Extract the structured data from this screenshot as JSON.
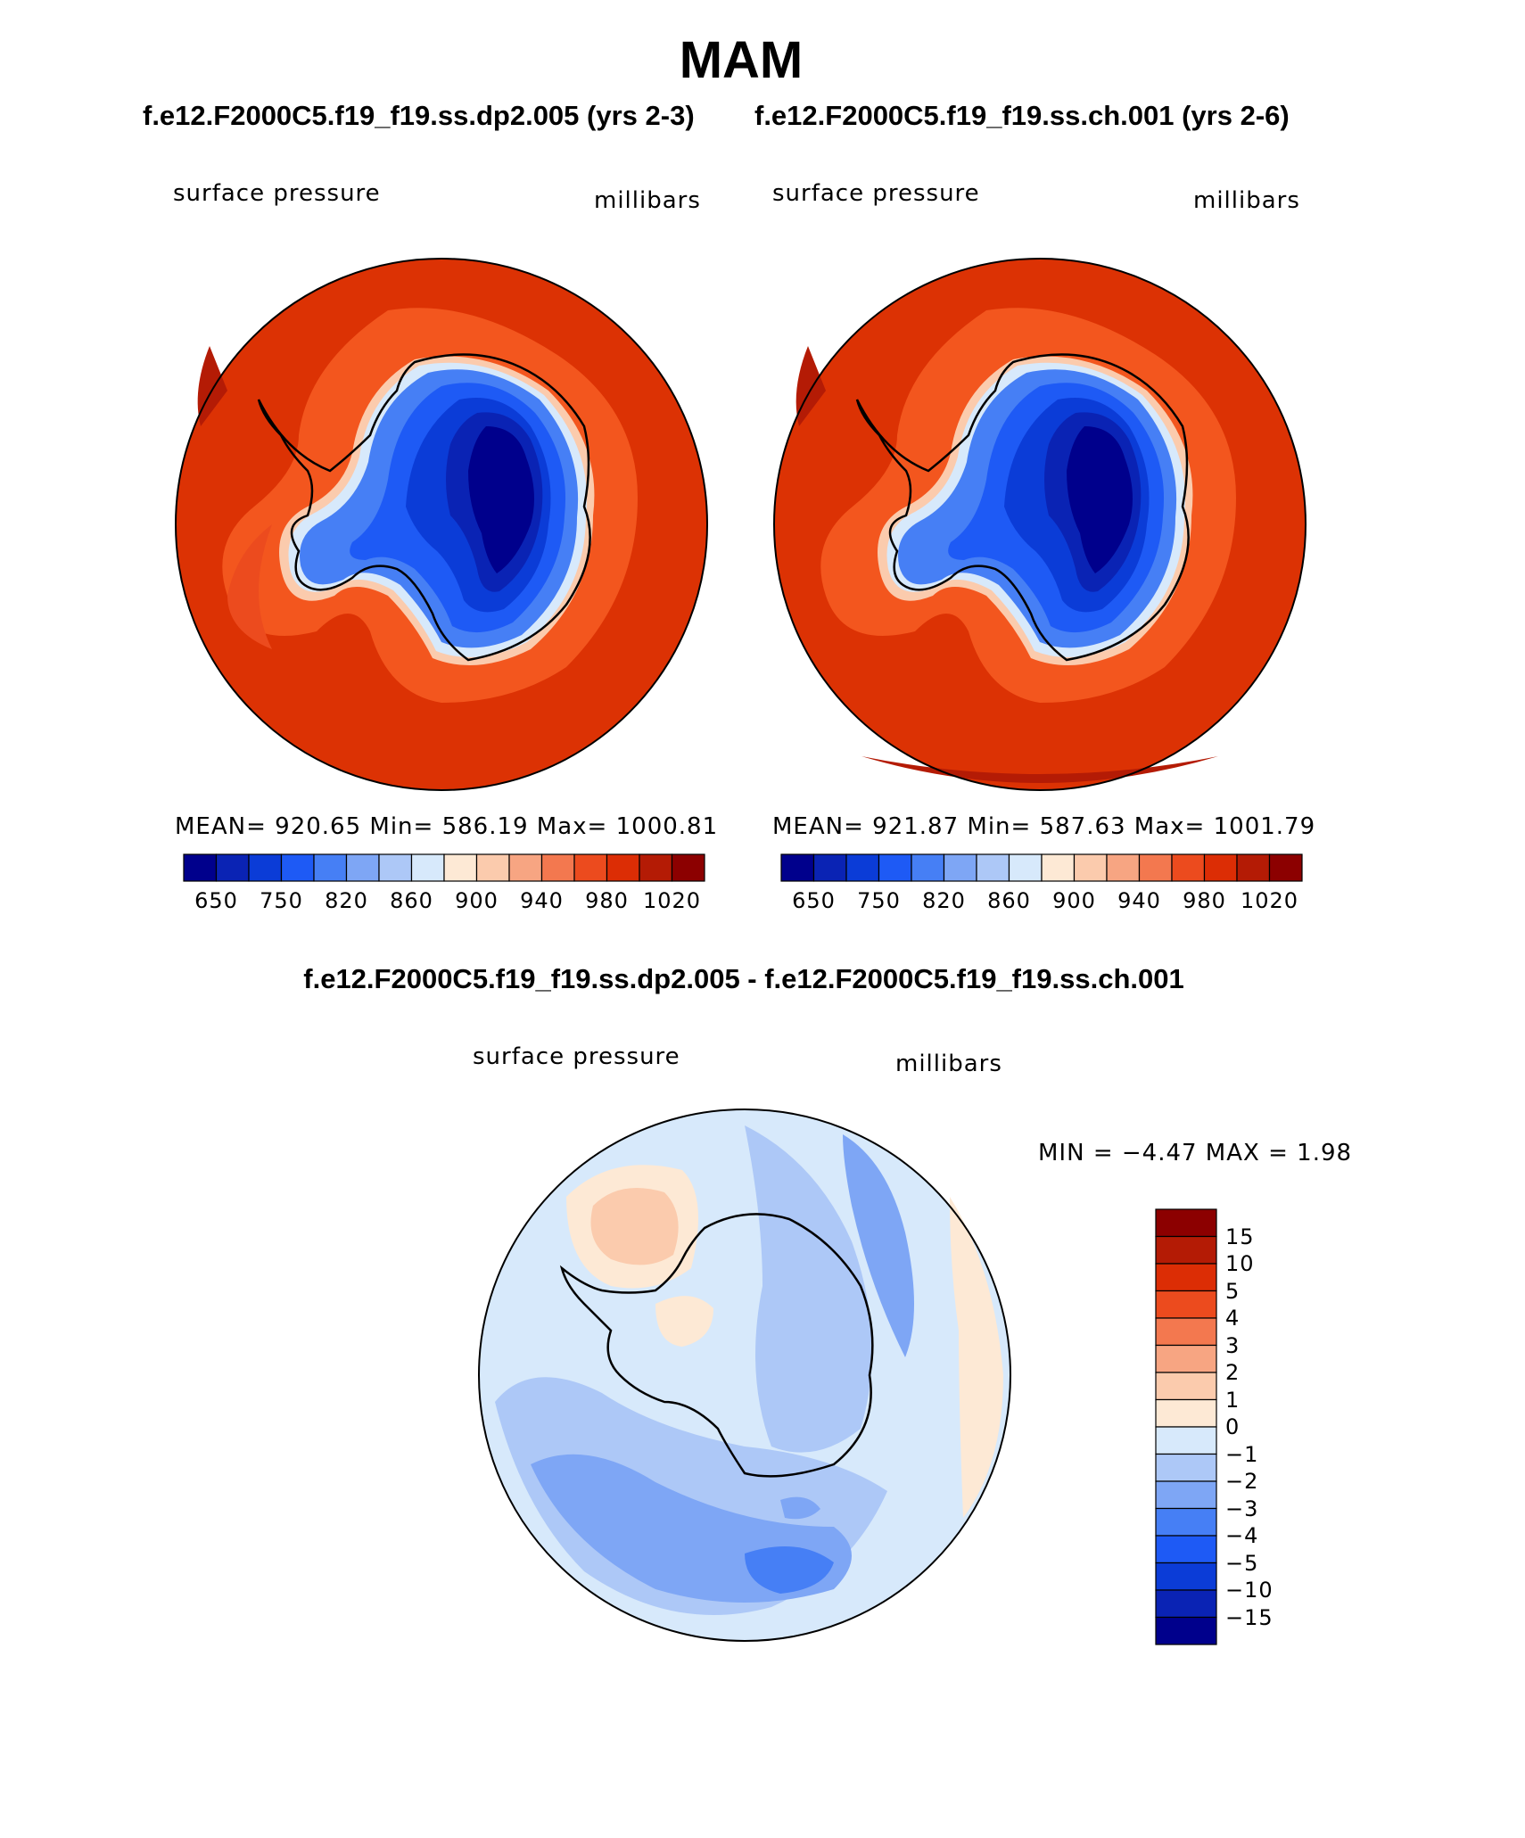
{
  "page": {
    "title": "MAM",
    "left_case": "f.e12.F2000C5.f19_f19.ss.dp2.005 (yrs 2-3)",
    "right_case": "f.e12.F2000C5.f19_f19.ss.ch.001 (yrs 2-6)",
    "diff_title": "f.e12.F2000C5.f19_f19.ss.dp2.005 - f.e12.F2000C5.f19_f19.ss.ch.001"
  },
  "panels": [
    {
      "id": "left",
      "variable": "surface pressure",
      "units": "millibars",
      "stats": "MEAN= 920.65   Min= 586.19   Max= 1000.81"
    },
    {
      "id": "right",
      "variable": "surface pressure",
      "units": "millibars",
      "stats": "MEAN= 921.87   Min= 587.63   Max= 1001.79"
    },
    {
      "id": "diff",
      "variable": "surface pressure",
      "units": "millibars",
      "stats": "MIN =   −4.47 MAX =    1.98"
    }
  ],
  "colorbar_abs": {
    "colors": [
      "#00008c",
      "#0a23b4",
      "#0b3cd7",
      "#1e5af5",
      "#467ff5",
      "#7ea6f5",
      "#adc8f7",
      "#d7e9fb",
      "#fde9d5",
      "#fbcbad",
      "#f7a582",
      "#f3784f",
      "#ec4b1e",
      "#dc2d05",
      "#b41b05",
      "#8c0000"
    ],
    "labels": [
      "650",
      "750",
      "820",
      "860",
      "900",
      "940",
      "980",
      "1020"
    ]
  },
  "colorbar_diff": {
    "colors_top_to_bottom": [
      "#8c0000",
      "#b41b05",
      "#dc2d05",
      "#ec4b1e",
      "#f3784f",
      "#f7a582",
      "#fbcbad",
      "#fde9d5",
      "#d7e9fb",
      "#adc8f7",
      "#7ea6f5",
      "#467ff5",
      "#1e5af5",
      "#0b3cd7",
      "#0a23b4",
      "#00008c"
    ],
    "labels": [
      "15",
      "10",
      "5",
      "4",
      "3",
      "2",
      "1",
      "0",
      "−1",
      "−2",
      "−3",
      "−4",
      "−5",
      "−10",
      "−15"
    ]
  }
}
